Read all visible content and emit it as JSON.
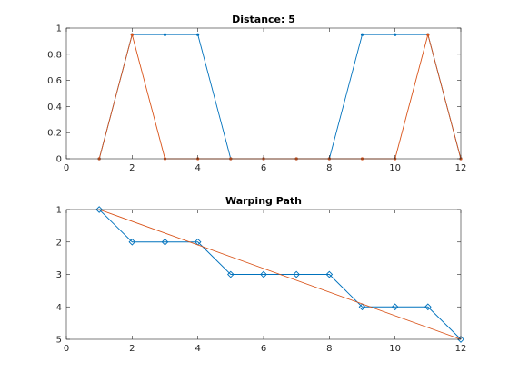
{
  "chart_data": [
    {
      "type": "line",
      "title": "Distance: 5",
      "xlabel": "",
      "ylabel": "",
      "xlim": [
        0,
        12
      ],
      "ylim": [
        0,
        1
      ],
      "xticks": [
        0,
        2,
        4,
        6,
        8,
        10,
        12
      ],
      "yticks": [
        0,
        0.2,
        0.4,
        0.6,
        0.8,
        1
      ],
      "ytick_labels": [
        "0",
        "0.2",
        "0.4",
        "0.6",
        "0.8",
        "1"
      ],
      "y_direction": "normal",
      "grid": false,
      "series": [
        {
          "x": [
            1,
            2,
            3,
            4,
            5,
            6,
            7,
            8,
            9,
            10,
            11,
            12
          ],
          "values": [
            0,
            0.95,
            0.95,
            0.95,
            0,
            0,
            0,
            0,
            0.95,
            0.95,
            0.95,
            0
          ],
          "color": "#0072BD",
          "marker": "dot"
        },
        {
          "x": [
            1,
            2,
            3,
            4,
            5,
            6,
            7,
            8,
            9,
            10,
            11,
            12
          ],
          "values": [
            0,
            0.95,
            0,
            0,
            0,
            0,
            0,
            0,
            0,
            0,
            0.95,
            0
          ],
          "color": "#D95319",
          "marker": "dot"
        }
      ]
    },
    {
      "type": "line",
      "title": "Warping Path",
      "xlabel": "",
      "ylabel": "",
      "xlim": [
        0,
        12
      ],
      "ylim": [
        1,
        5
      ],
      "xticks": [
        0,
        2,
        4,
        6,
        8,
        10,
        12
      ],
      "yticks": [
        1,
        2,
        3,
        4,
        5
      ],
      "ytick_labels": [
        "1",
        "2",
        "3",
        "4",
        "5"
      ],
      "y_direction": "reverse",
      "grid": false,
      "series": [
        {
          "x": [
            1,
            2,
            3,
            4,
            5,
            6,
            7,
            8,
            9,
            10,
            11,
            12
          ],
          "values": [
            1,
            2,
            2,
            2,
            3,
            3,
            3,
            3,
            4,
            4,
            4,
            5
          ],
          "color": "#0072BD",
          "marker": "diamond"
        },
        {
          "x": [
            1,
            12
          ],
          "values": [
            1,
            5
          ],
          "color": "#D95319",
          "marker": "none"
        }
      ]
    }
  ]
}
